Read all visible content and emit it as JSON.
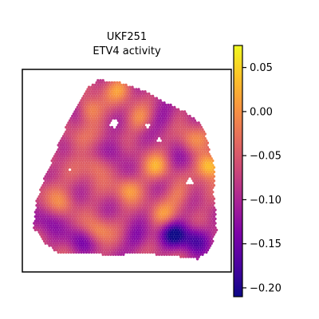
{
  "chart_data": {
    "type": "heatmap",
    "subtype": "spatial spot map",
    "title_line1": "UKF251",
    "title_line2": "ETV4 activity",
    "xlabel": "",
    "ylabel": "",
    "colormap": "plasma",
    "colorbar": {
      "vmin": -0.21,
      "vmax": 0.075,
      "ticks": [
        0.05,
        0.0,
        -0.05,
        -0.1,
        -0.15,
        -0.2
      ],
      "tick_labels": [
        "0.05",
        "0.00",
        "−0.05",
        "−0.10",
        "−0.15",
        "−0.20"
      ]
    },
    "grid": false,
    "axes_ticks": false
  }
}
